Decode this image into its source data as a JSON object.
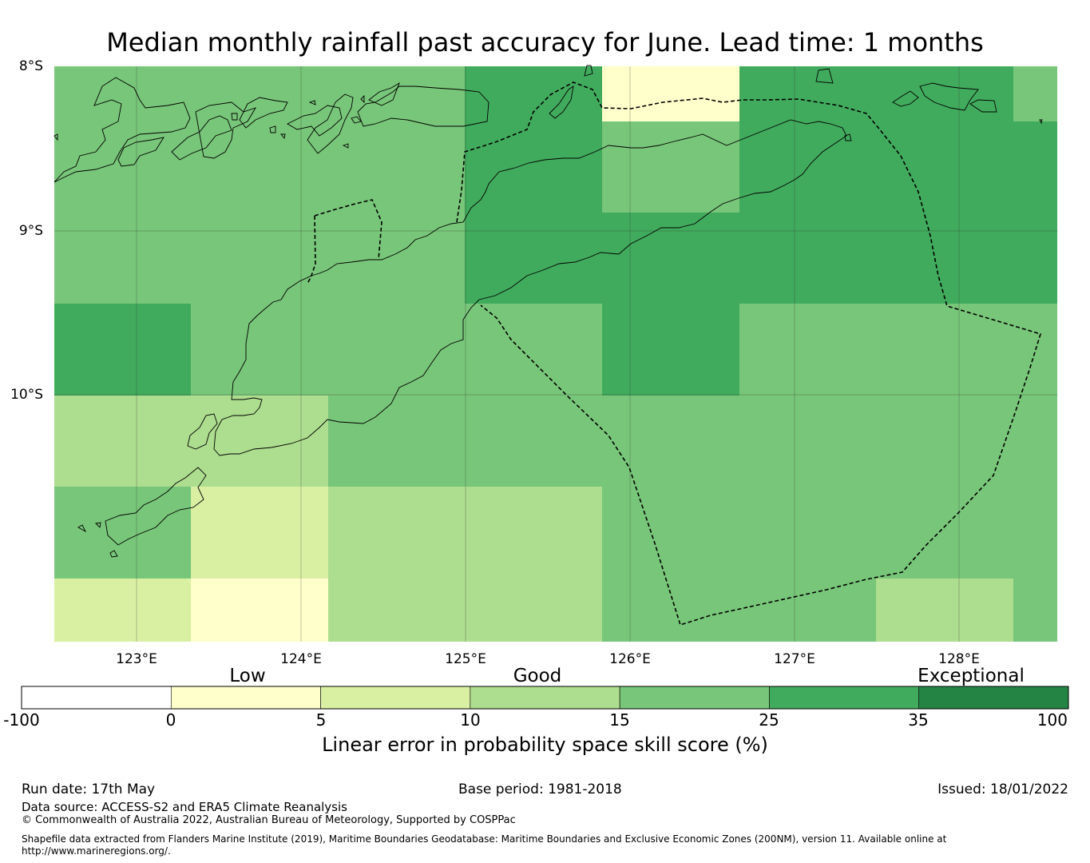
{
  "title": "Median monthly rainfall past accuracy for June. Lead time: 1 months",
  "map": {
    "lat_labels": [
      "8°S",
      "9°S",
      "10°S"
    ],
    "lon_labels": [
      "123°E",
      "124°E",
      "125°E",
      "126°E",
      "127°E",
      "128°E"
    ],
    "extent": {
      "lon": [
        122.5,
        128.6
      ],
      "lat": [
        -8.0,
        -11.5
      ]
    },
    "grid": true
  },
  "colorbar": {
    "category_labels": [
      "Low",
      "Good",
      "Exceptional"
    ],
    "ticks": [
      "-100",
      "0",
      "5",
      "10",
      "15",
      "25",
      "35",
      "100"
    ],
    "colors": [
      "#ffffff",
      "#ffffcc",
      "#d9f0a3",
      "#addd8e",
      "#78c679",
      "#41ab5d",
      "#238443"
    ],
    "label": "Linear error in probability space skill score (%)"
  },
  "footer": {
    "run_date": "Run date: 17th May",
    "base_period": "Base period: 1981-2018",
    "issued": "Issued: 18/01/2022",
    "data_source": "Data source: ACCESS-S2 and ERA5 Climate Reanalysis",
    "copyright": "© Commonwealth of Australia 2022, Australian Bureau of Meteorology, Supported by COSPPac",
    "shapefile": "Shapefile data extracted from Flanders Marine Institute (2019), Maritime Boundaries Geodatabase: Maritime Boundaries and Exclusive Economic Zones (200NM), version 11. Available online at http://www.marineregions.org/."
  }
}
